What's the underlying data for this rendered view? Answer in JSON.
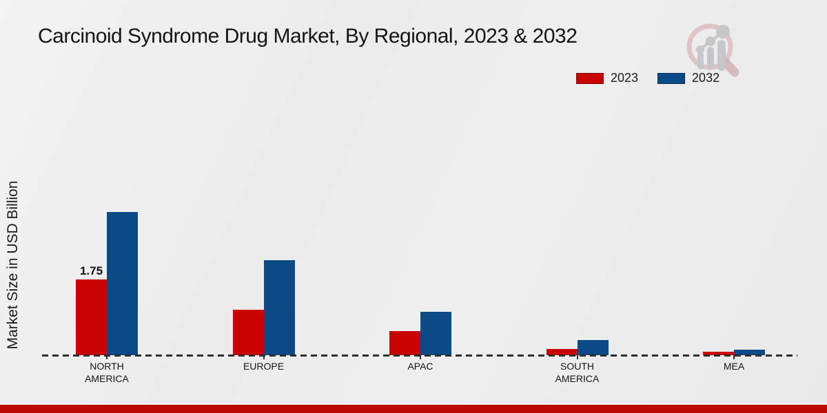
{
  "header": {
    "title": "Carcinoid Syndrome Drug Market, By Regional, 2023 & 2032"
  },
  "legend": {
    "items": [
      {
        "label": "2023",
        "color": "#c90303"
      },
      {
        "label": "2032",
        "color": "#0b4a86"
      }
    ]
  },
  "watermark": {
    "icon": "magnifier-bar-chart-logo"
  },
  "footer": {
    "accent_color": "#bf0a0a"
  },
  "chart_data": {
    "type": "bar",
    "title": "Carcinoid Syndrome Drug Market, By Regional, 2023 & 2032",
    "ylabel": "Market Size in USD Billion",
    "categories": [
      "NORTH AMERICA",
      "EUROPE",
      "APAC",
      "SOUTH AMERICA",
      "MEA"
    ],
    "series": [
      {
        "name": "2023",
        "color": "#c90303",
        "values": [
          1.75,
          1.05,
          0.55,
          0.15,
          0.08
        ]
      },
      {
        "name": "2032",
        "color": "#0b4a86",
        "values": [
          3.31,
          2.2,
          1.0,
          0.35,
          0.13
        ]
      }
    ],
    "value_labels": [
      {
        "series_index": 0,
        "category_index": 0,
        "text": "1.75"
      }
    ],
    "ylim": [
      0,
      3.5
    ],
    "grid": false,
    "baseline_style": "dashed",
    "legend_position": "top-right"
  }
}
